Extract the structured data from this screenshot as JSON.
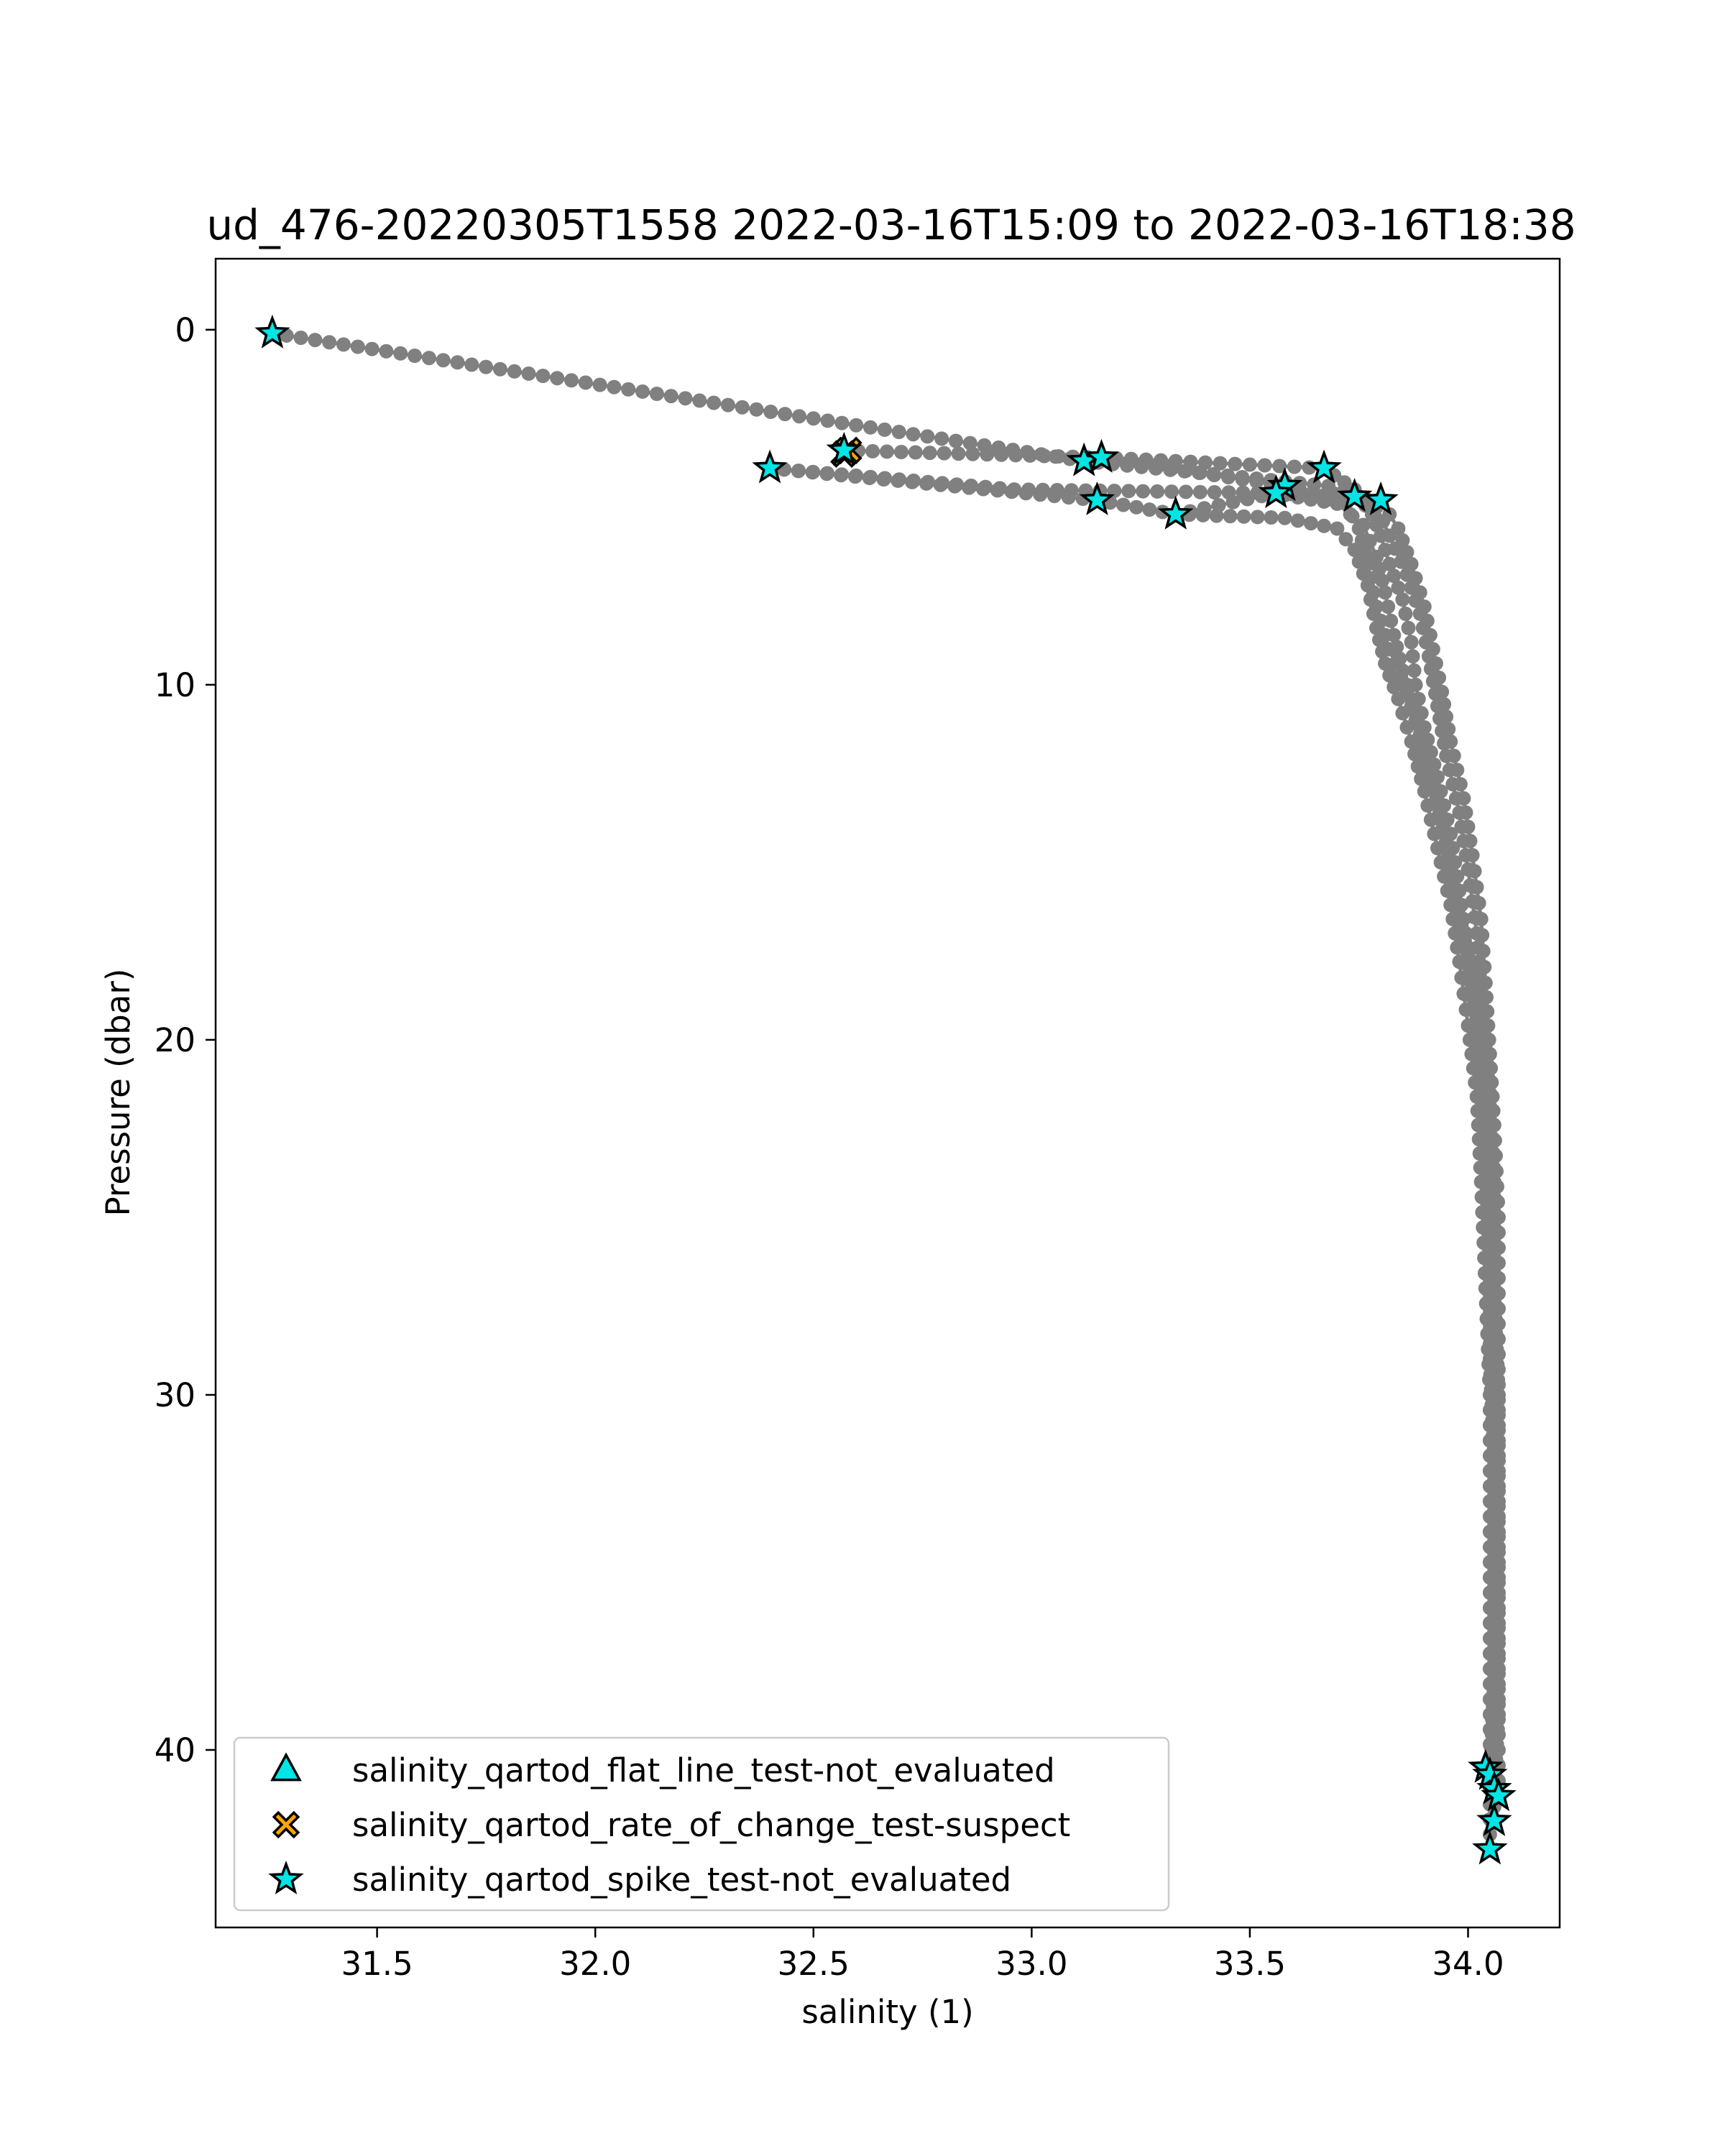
{
  "chart_data": {
    "type": "scatter",
    "title": "ud_476-20220305T1558 2022-03-16T15:09 to 2022-03-16T18:38",
    "xlabel": "salinity (1)",
    "ylabel": "Pressure (dbar)",
    "xlim": [
      31.13,
      34.21
    ],
    "ylim": [
      45,
      -2
    ],
    "y_inverted": true,
    "grid": false,
    "legend_placement": "lower-left",
    "x_ticks": [
      "31.5",
      "32.0",
      "32.5",
      "33.0",
      "33.5",
      "34.0"
    ],
    "x_tick_values": [
      31.5,
      32.0,
      32.5,
      33.0,
      33.5,
      34.0
    ],
    "y_ticks": [
      "0",
      "10",
      "20",
      "30",
      "40"
    ],
    "y_tick_values": [
      0,
      10,
      20,
      30,
      40
    ],
    "colors": {
      "profile_line": "#808080",
      "not_evaluated": "#00e5e5",
      "suspect": "#ffa500",
      "marker_edge": "#000000"
    },
    "series": [
      {
        "name": "salinity_qartod_flat_line_test-not_evaluated",
        "marker": "triangle",
        "color": "#00e5e5",
        "points": []
      },
      {
        "name": "salinity_qartod_rate_of_change_test-suspect",
        "marker": "x",
        "color": "#ffa500",
        "points": [
          [
            32.58,
            3.4
          ],
          [
            32.57,
            3.5
          ]
        ]
      },
      {
        "name": "salinity_qartod_spike_test-not_evaluated",
        "marker": "star",
        "color": "#00e5e5",
        "points": [
          [
            31.26,
            0.1
          ],
          [
            32.57,
            3.4
          ],
          [
            32.4,
            3.9
          ],
          [
            33.12,
            3.7
          ],
          [
            33.16,
            3.6
          ],
          [
            33.67,
            3.9
          ],
          [
            33.58,
            4.4
          ],
          [
            33.56,
            4.6
          ],
          [
            33.74,
            4.7
          ],
          [
            33.8,
            4.8
          ],
          [
            33.15,
            4.8
          ],
          [
            33.33,
            5.2
          ],
          [
            34.04,
            40.5
          ],
          [
            34.05,
            40.7
          ],
          [
            34.06,
            41.1
          ],
          [
            34.07,
            41.3
          ],
          [
            34.06,
            42.0
          ],
          [
            34.05,
            42.8
          ]
        ]
      }
    ],
    "profiles": [
      {
        "name": "",
        "points": [
          [
            31.26,
            0.1
          ],
          [
            33.12,
            3.7
          ],
          [
            33.68,
            4.4
          ],
          [
            33.75,
            4.7
          ],
          [
            33.78,
            5.2
          ],
          [
            33.8,
            5.8
          ],
          [
            33.82,
            6.6
          ],
          [
            33.85,
            7.6
          ],
          [
            33.87,
            8.8
          ],
          [
            33.88,
            10.0
          ],
          [
            33.9,
            11.2
          ],
          [
            33.93,
            12.6
          ],
          [
            33.96,
            14.2
          ],
          [
            33.98,
            15.8
          ],
          [
            34.0,
            17.4
          ],
          [
            34.02,
            19.0
          ],
          [
            34.03,
            21.0
          ],
          [
            34.04,
            23.0
          ],
          [
            34.05,
            25.5
          ],
          [
            34.05,
            28.0
          ],
          [
            34.06,
            31.0
          ],
          [
            34.06,
            34.0
          ],
          [
            34.06,
            37.0
          ],
          [
            34.06,
            40.0
          ],
          [
            34.05,
            40.5
          ]
        ]
      },
      {
        "name": "",
        "points": [
          [
            32.57,
            3.4
          ],
          [
            33.16,
            3.6
          ],
          [
            33.67,
            3.9
          ],
          [
            33.74,
            4.5
          ],
          [
            33.79,
            5.0
          ],
          [
            33.82,
            5.8
          ],
          [
            33.86,
            6.9
          ],
          [
            33.89,
            8.0
          ],
          [
            33.91,
            9.2
          ],
          [
            33.93,
            10.6
          ],
          [
            33.95,
            12.0
          ],
          [
            33.98,
            13.6
          ],
          [
            34.0,
            15.2
          ],
          [
            34.02,
            17.0
          ],
          [
            34.03,
            19.0
          ],
          [
            34.05,
            21.5
          ],
          [
            34.06,
            24.0
          ],
          [
            34.06,
            27.0
          ],
          [
            34.07,
            30.0
          ],
          [
            34.07,
            33.0
          ],
          [
            34.07,
            36.0
          ],
          [
            34.07,
            39.0
          ],
          [
            34.06,
            41.1
          ]
        ]
      },
      {
        "name": "",
        "points": [
          [
            32.4,
            3.9
          ],
          [
            32.96,
            4.5
          ],
          [
            33.55,
            4.6
          ],
          [
            33.7,
            4.9
          ],
          [
            33.76,
            5.5
          ],
          [
            33.79,
            6.4
          ],
          [
            33.81,
            7.4
          ],
          [
            33.83,
            8.6
          ],
          [
            33.85,
            9.6
          ],
          [
            33.88,
            10.8
          ],
          [
            33.91,
            12.2
          ],
          [
            33.94,
            13.8
          ],
          [
            33.97,
            15.4
          ],
          [
            33.99,
            17.0
          ],
          [
            34.01,
            18.8
          ],
          [
            34.03,
            20.8
          ],
          [
            34.04,
            23.0
          ],
          [
            34.05,
            26.0
          ],
          [
            34.05,
            29.0
          ],
          [
            34.06,
            32.0
          ],
          [
            34.06,
            35.0
          ],
          [
            34.06,
            38.0
          ],
          [
            34.06,
            42.0
          ]
        ]
      },
      {
        "name": "",
        "points": [
          [
            32.4,
            3.9
          ],
          [
            33.15,
            4.8
          ],
          [
            33.33,
            5.2
          ],
          [
            33.58,
            5.3
          ],
          [
            33.7,
            5.6
          ],
          [
            33.74,
            6.2
          ],
          [
            33.77,
            7.2
          ],
          [
            33.79,
            8.4
          ],
          [
            33.81,
            9.4
          ],
          [
            33.84,
            10.4
          ],
          [
            33.87,
            11.6
          ],
          [
            33.9,
            13.0
          ],
          [
            33.93,
            14.6
          ],
          [
            33.96,
            16.2
          ],
          [
            33.98,
            17.8
          ],
          [
            34.0,
            19.6
          ],
          [
            34.02,
            21.6
          ],
          [
            34.03,
            24.0
          ],
          [
            34.04,
            27.0
          ],
          [
            34.05,
            30.0
          ],
          [
            34.05,
            33.0
          ],
          [
            34.05,
            36.0
          ],
          [
            34.05,
            39.0
          ],
          [
            34.05,
            42.8
          ]
        ]
      },
      {
        "name": "",
        "points": [
          [
            33.33,
            5.2
          ],
          [
            33.56,
            4.6
          ],
          [
            33.8,
            4.8
          ],
          [
            33.84,
            5.6
          ],
          [
            33.87,
            6.6
          ],
          [
            33.9,
            7.8
          ],
          [
            33.92,
            9.0
          ],
          [
            33.94,
            10.2
          ],
          [
            33.96,
            11.6
          ],
          [
            33.99,
            13.2
          ],
          [
            34.01,
            14.8
          ],
          [
            34.03,
            16.6
          ],
          [
            34.04,
            18.4
          ],
          [
            34.05,
            20.4
          ],
          [
            34.06,
            22.4
          ],
          [
            34.07,
            25.0
          ],
          [
            34.07,
            28.0
          ],
          [
            34.07,
            31.0
          ],
          [
            34.07,
            34.0
          ],
          [
            34.07,
            37.0
          ],
          [
            34.07,
            40.0
          ],
          [
            34.07,
            41.3
          ]
        ]
      },
      {
        "name": "",
        "points": [
          [
            33.16,
            3.6
          ],
          [
            33.58,
            4.4
          ],
          [
            33.72,
            4.9
          ],
          [
            33.75,
            5.6
          ],
          [
            33.77,
            6.6
          ],
          [
            33.79,
            7.8
          ],
          [
            33.82,
            9.0
          ],
          [
            33.86,
            10.2
          ],
          [
            33.89,
            11.4
          ],
          [
            33.92,
            12.8
          ],
          [
            33.95,
            14.4
          ],
          [
            33.97,
            16.0
          ],
          [
            34.0,
            17.6
          ],
          [
            34.02,
            19.4
          ],
          [
            34.03,
            21.4
          ],
          [
            34.04,
            23.6
          ],
          [
            34.05,
            26.2
          ],
          [
            34.05,
            29.0
          ],
          [
            34.06,
            32.0
          ],
          [
            34.06,
            35.0
          ],
          [
            34.06,
            38.0
          ],
          [
            34.05,
            40.7
          ]
        ]
      }
    ]
  }
}
